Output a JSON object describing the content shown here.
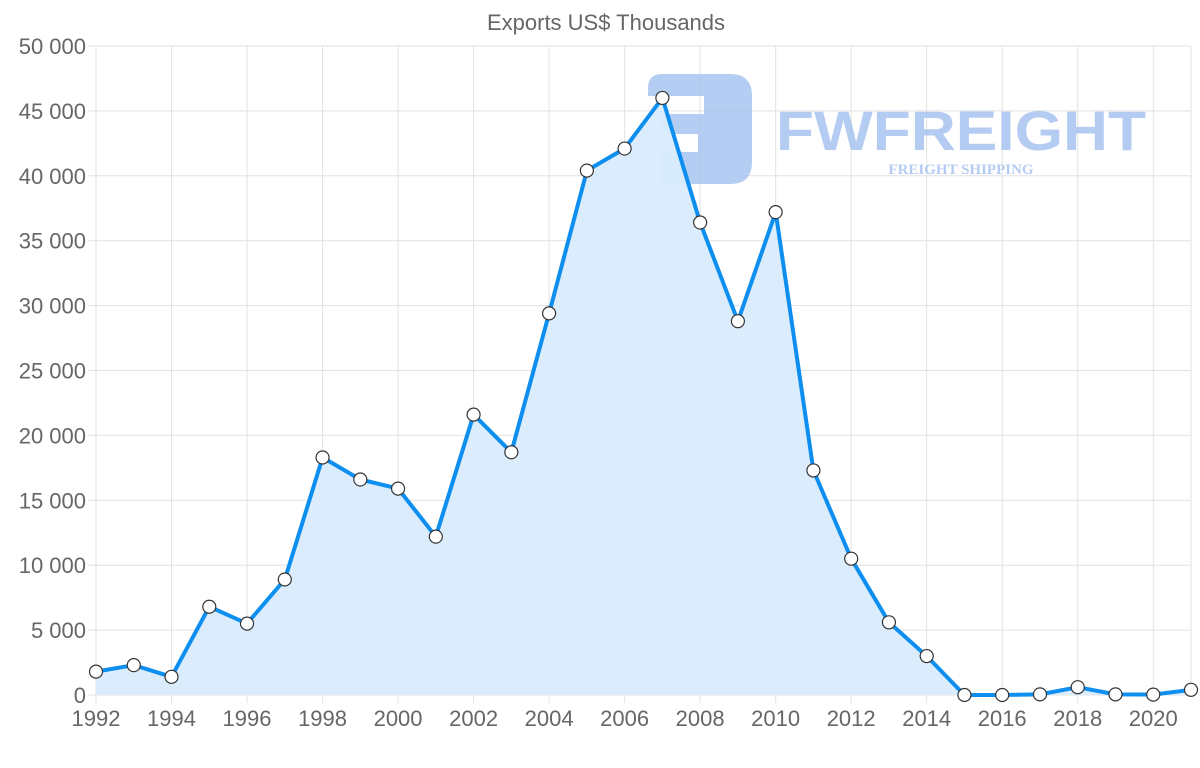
{
  "chart_data": {
    "type": "area",
    "title": "Exports US$ Thousands",
    "xlabel": "",
    "ylabel": "",
    "x": [
      1992,
      1993,
      1994,
      1995,
      1996,
      1997,
      1998,
      1999,
      2000,
      2001,
      2002,
      2003,
      2004,
      2005,
      2006,
      2007,
      2008,
      2009,
      2010,
      2011,
      2012,
      2013,
      2014,
      2015,
      2016,
      2017,
      2018,
      2019,
      2020,
      2021
    ],
    "series": [
      {
        "name": "Exports US$ Thousands",
        "values": [
          1800,
          2300,
          1400,
          6800,
          5500,
          8900,
          18300,
          16600,
          15900,
          12200,
          21600,
          18700,
          29400,
          40400,
          42100,
          46000,
          36400,
          28800,
          37200,
          17300,
          10500,
          5600,
          3000,
          0,
          0,
          50,
          600,
          50,
          30,
          400
        ]
      }
    ],
    "xlim": [
      1992,
      2021
    ],
    "ylim": [
      0,
      50000
    ],
    "yticks": [
      0,
      5000,
      10000,
      15000,
      20000,
      25000,
      30000,
      35000,
      40000,
      45000,
      50000
    ],
    "ytick_labels": [
      "0",
      "5 000",
      "10 000",
      "15 000",
      "20 000",
      "25 000",
      "30 000",
      "35 000",
      "40 000",
      "45 000",
      "50 000"
    ],
    "xticks": [
      1992,
      1994,
      1996,
      1998,
      2000,
      2002,
      2004,
      2006,
      2008,
      2010,
      2012,
      2014,
      2016,
      2018,
      2020
    ],
    "xtick_labels": [
      "1992",
      "1994",
      "1996",
      "1998",
      "2000",
      "2002",
      "2004",
      "2006",
      "2008",
      "2010",
      "2012",
      "2014",
      "2016",
      "2018",
      "2020"
    ],
    "grid": true,
    "legend": "none",
    "colors": {
      "line": "#0e8ff0",
      "fill": "#d9ecfc",
      "grid": "#e2e2e2",
      "text": "#666666",
      "watermark": "#a7c4f0"
    }
  },
  "watermark": {
    "brand": "FWFREIGHT",
    "tagline": "FREIGHT SHIPPING"
  }
}
